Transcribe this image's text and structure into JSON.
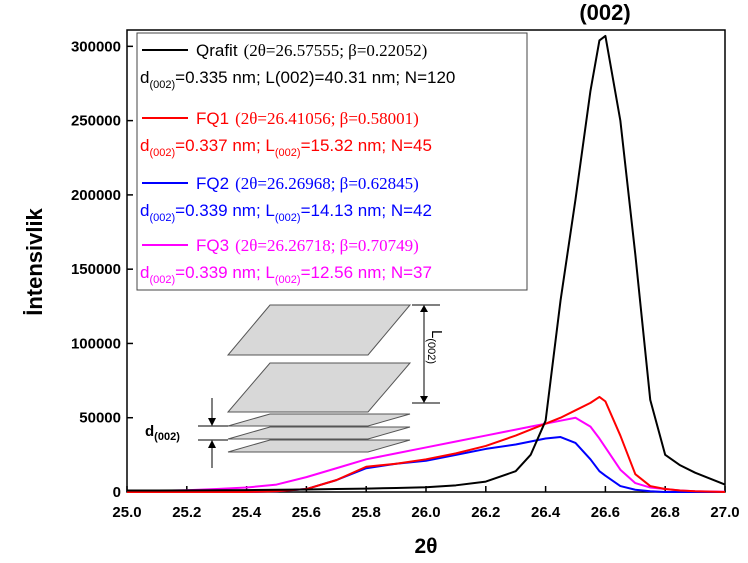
{
  "chart_data": {
    "type": "line",
    "annotation": "(002)",
    "xlabel": "2θ",
    "ylabel": "İntensivlik",
    "x": [
      25.0,
      25.1,
      25.2,
      25.3,
      25.4,
      25.5,
      25.6,
      25.7,
      25.8,
      25.9,
      26.0,
      26.1,
      26.2,
      26.3,
      26.35,
      26.4,
      26.45,
      26.5,
      26.55,
      26.58,
      26.6,
      26.65,
      26.7,
      26.75,
      26.8,
      26.85,
      26.9,
      27.0
    ],
    "series": [
      {
        "name": "Qrafit",
        "params": "(2θ=26.57555; β=0.22052)",
        "detail": [
          "d",
          "(002)",
          "=0.335 nm; L(002)=40.31 nm; N=120"
        ],
        "color": "#000000",
        "values": [
          1000,
          1000,
          1100,
          1200,
          1300,
          1500,
          1700,
          2000,
          2300,
          2700,
          3200,
          4500,
          7000,
          14000,
          25000,
          48000,
          129000,
          197000,
          270000,
          304000,
          307000,
          250000,
          160000,
          62000,
          25000,
          18000,
          13000,
          5000
        ]
      },
      {
        "name": "FQ1",
        "params": "(2θ=26.41056; β=0.58001)",
        "detail": [
          "d",
          "(002)",
          "=0.337 nm; L",
          "(002)",
          "=15.32 nm; N=45"
        ],
        "color": "#ff0000",
        "values": [
          0,
          0,
          0,
          0,
          0,
          500,
          2000,
          8000,
          17000,
          19000,
          22000,
          26000,
          31000,
          38000,
          42000,
          46000,
          50000,
          55000,
          60000,
          64000,
          61000,
          38000,
          12000,
          4000,
          2000,
          1000,
          500,
          0
        ]
      },
      {
        "name": "FQ2",
        "params": "(2θ=26.26968; β=0.62845)",
        "detail": [
          "d",
          "(002)",
          "=0.339 nm; L",
          "(002)",
          "=14.13 nm; N=42"
        ],
        "color": "#0000ff",
        "values": [
          0,
          0,
          0,
          0,
          0,
          500,
          2000,
          8000,
          16000,
          19000,
          21000,
          25000,
          29000,
          32000,
          34000,
          36000,
          37000,
          33000,
          22000,
          14000,
          11000,
          4000,
          1500,
          500,
          0,
          0,
          0,
          0
        ]
      },
      {
        "name": "FQ3",
        "params": "(2θ=26.26718; β=0.70749)",
        "detail": [
          "d",
          "(002)",
          "=0.339 nm; L",
          "(002)",
          "=12.56 nm; N=37"
        ],
        "color": "#ff00ff",
        "values": [
          500,
          800,
          1200,
          2000,
          3000,
          5000,
          10000,
          16000,
          22000,
          26000,
          30000,
          34000,
          38000,
          42000,
          44000,
          46000,
          48000,
          50000,
          44000,
          36000,
          30000,
          15000,
          6000,
          3000,
          2000,
          1000,
          500,
          200
        ]
      }
    ],
    "xlim": [
      25,
      27
    ],
    "ylim": [
      0,
      311000
    ],
    "xticks": [
      {
        "value": 25,
        "label": "25.0"
      },
      25.2,
      25.4,
      25.6,
      25.8,
      {
        "value": 26,
        "label": "26.0"
      },
      26.2,
      26.4,
      26.6,
      26.8,
      {
        "value": 27,
        "label": "27.0"
      }
    ],
    "yticks": [
      0,
      50000,
      100000,
      150000,
      200000,
      250000,
      300000
    ],
    "inset": {
      "l_label": [
        "L",
        "(002)"
      ],
      "d_label": [
        "d",
        "(002)"
      ]
    }
  }
}
